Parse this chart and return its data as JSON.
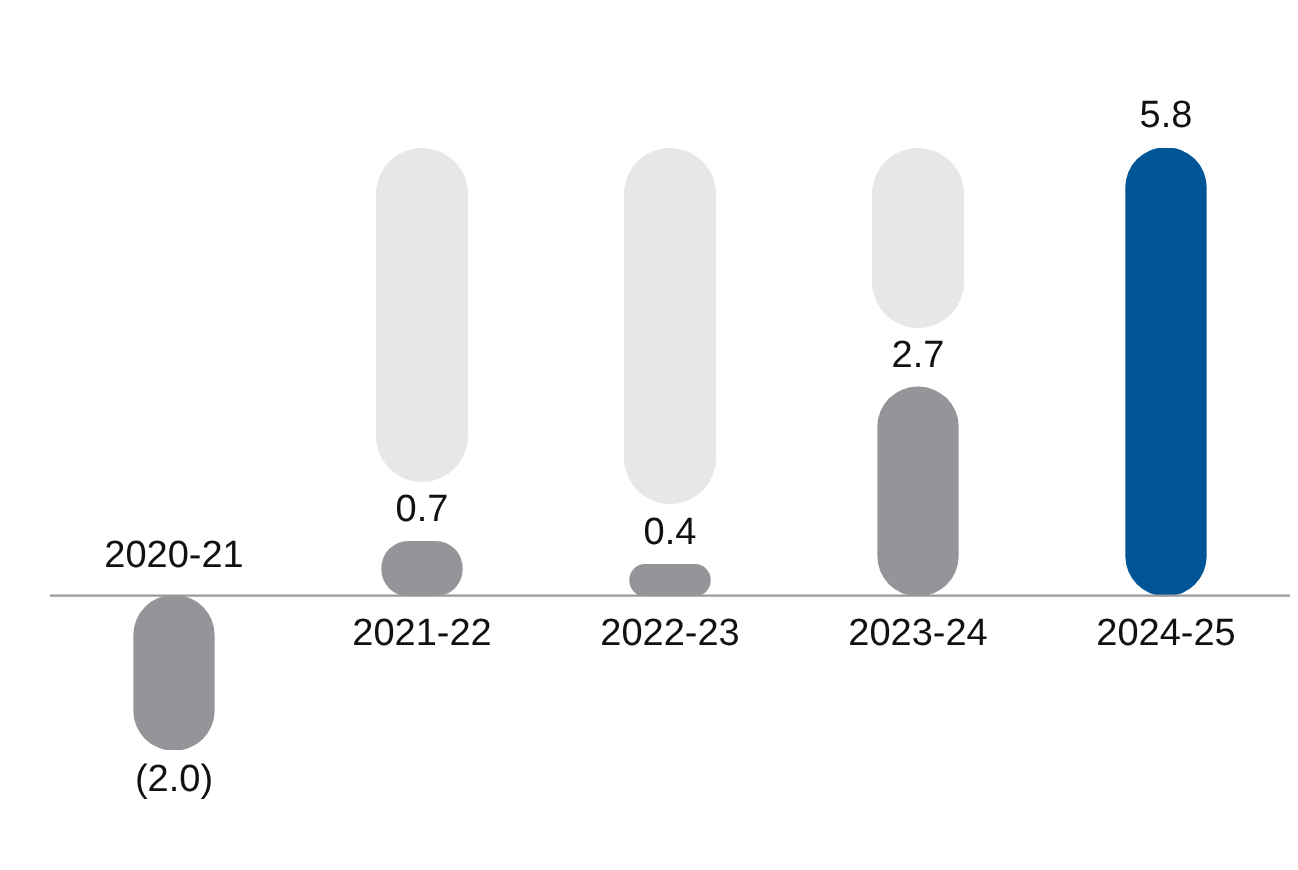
{
  "chart_data": {
    "type": "bar",
    "categories": [
      "2020-21",
      "2021-22",
      "2022-23",
      "2023-24",
      "2024-25"
    ],
    "values": [
      -2.0,
      0.7,
      0.4,
      2.7,
      5.8
    ],
    "colors": [
      "#939598",
      "#939598",
      "#939598",
      "#939598",
      "#005596"
    ],
    "value_labels": [
      "(2.0)",
      "0.7",
      "0.4",
      "2.7",
      "5.8"
    ],
    "legend": false
  }
}
